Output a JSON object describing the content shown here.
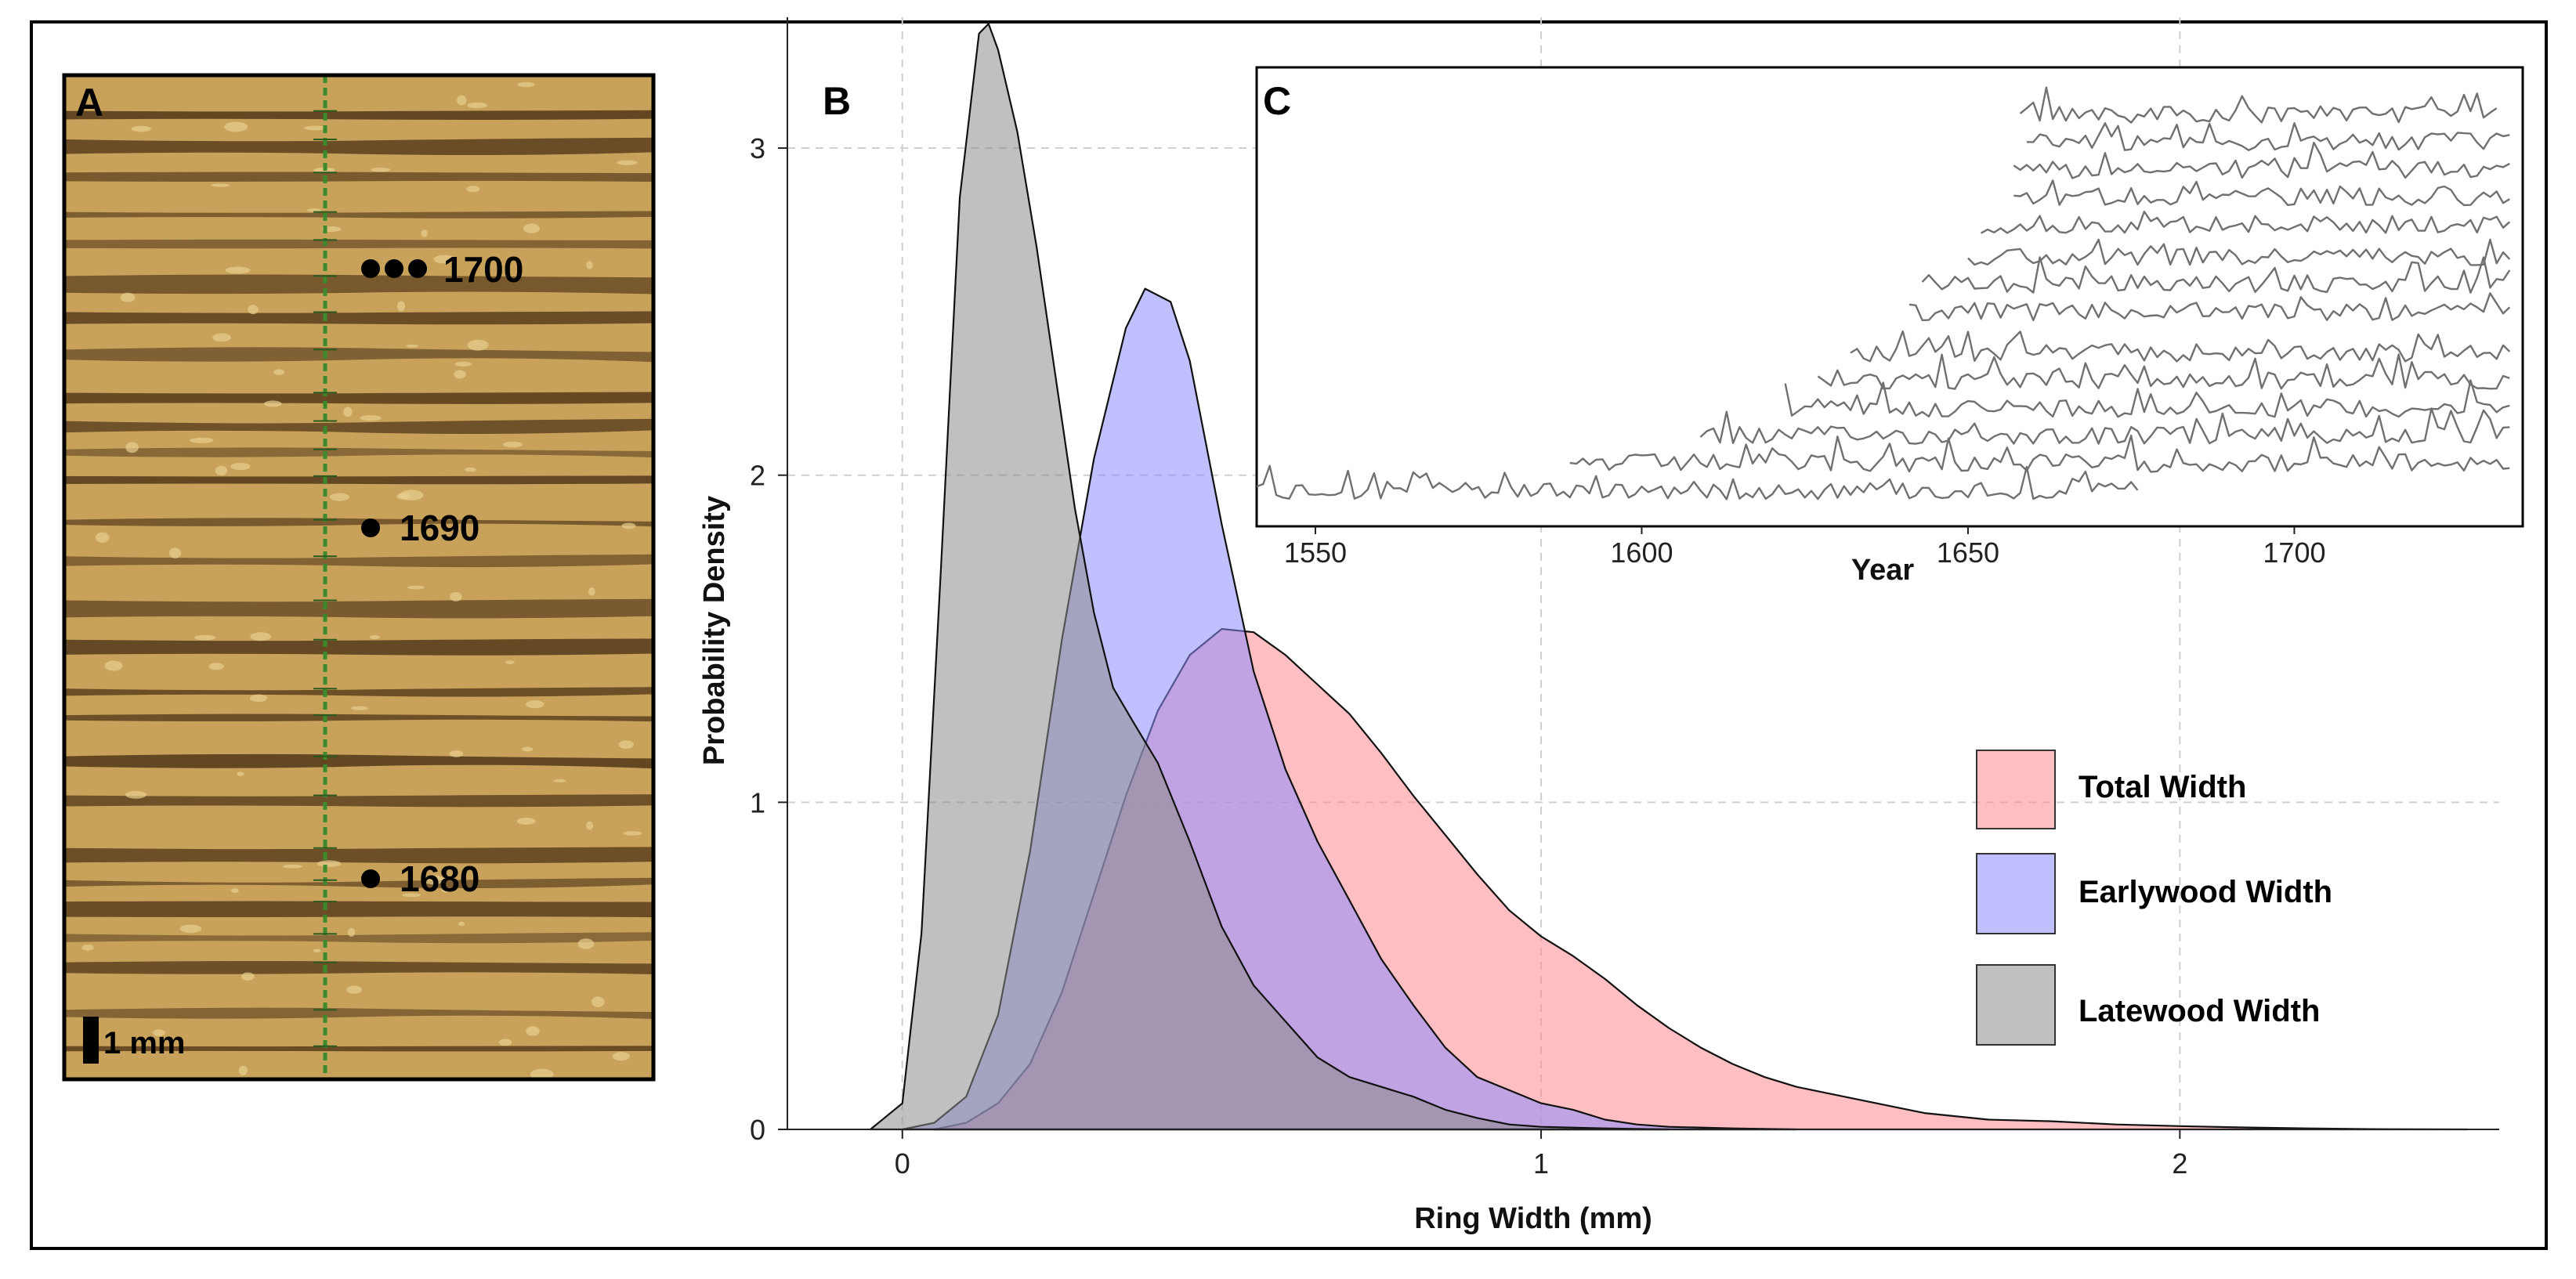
{
  "panel_a": {
    "letter": "A",
    "scale_label": "1 mm",
    "markers": [
      {
        "year_label": "1700",
        "dots": 3
      },
      {
        "year_label": "1690",
        "dots": 1
      },
      {
        "year_label": "1680",
        "dots": 1
      }
    ],
    "colors": {
      "wood_light": "#c8a25a",
      "wood_dark": "#5e4220",
      "measure_line": "#3c8a2c"
    }
  },
  "chart_data": [
    {
      "panel": "B",
      "type": "area",
      "title": "",
      "xlabel": "Ring Width (mm)",
      "ylabel": "Probability Density",
      "xlim": [
        -0.18,
        2.5
      ],
      "ylim": [
        0,
        3.4
      ],
      "xticks": [
        0,
        1,
        2
      ],
      "yticks": [
        0,
        1,
        2,
        3
      ],
      "grid": true,
      "legend_position": "right",
      "series": [
        {
          "name": "Total Width",
          "color": "#ff8a8f",
          "opacity": 0.55,
          "x": [
            0.05,
            0.1,
            0.15,
            0.2,
            0.25,
            0.3,
            0.35,
            0.4,
            0.45,
            0.5,
            0.55,
            0.6,
            0.65,
            0.7,
            0.75,
            0.8,
            0.85,
            0.9,
            0.95,
            1.0,
            1.05,
            1.1,
            1.15,
            1.2,
            1.25,
            1.3,
            1.35,
            1.4,
            1.45,
            1.5,
            1.55,
            1.6,
            1.7,
            1.8,
            1.9,
            2.0,
            2.1,
            2.2,
            2.3,
            2.45
          ],
          "y": [
            0,
            0.02,
            0.08,
            0.2,
            0.42,
            0.72,
            1.02,
            1.28,
            1.45,
            1.53,
            1.52,
            1.45,
            1.36,
            1.27,
            1.15,
            1.02,
            0.9,
            0.78,
            0.67,
            0.59,
            0.53,
            0.46,
            0.38,
            0.31,
            0.25,
            0.2,
            0.16,
            0.13,
            0.11,
            0.09,
            0.07,
            0.05,
            0.03,
            0.025,
            0.015,
            0.01,
            0.006,
            0.003,
            0.001,
            0
          ]
        },
        {
          "name": "Earlywood Width",
          "color": "#8c8cff",
          "opacity": 0.55,
          "x": [
            0,
            0.05,
            0.1,
            0.15,
            0.2,
            0.25,
            0.3,
            0.35,
            0.38,
            0.42,
            0.45,
            0.5,
            0.55,
            0.6,
            0.65,
            0.7,
            0.75,
            0.8,
            0.85,
            0.9,
            0.95,
            1.0,
            1.05,
            1.1,
            1.15,
            1.2,
            1.3,
            1.4
          ],
          "y": [
            0,
            0.02,
            0.1,
            0.35,
            0.85,
            1.5,
            2.05,
            2.45,
            2.57,
            2.53,
            2.35,
            1.85,
            1.4,
            1.1,
            0.88,
            0.7,
            0.52,
            0.38,
            0.25,
            0.16,
            0.12,
            0.08,
            0.06,
            0.03,
            0.015,
            0.008,
            0.003,
            0
          ]
        },
        {
          "name": "Latewood Width",
          "color": "#8c8c8c",
          "opacity": 0.55,
          "x": [
            -0.05,
            0,
            0.03,
            0.06,
            0.09,
            0.12,
            0.135,
            0.15,
            0.18,
            0.21,
            0.24,
            0.27,
            0.3,
            0.33,
            0.36,
            0.4,
            0.45,
            0.5,
            0.55,
            0.6,
            0.65,
            0.7,
            0.75,
            0.8,
            0.85,
            0.9,
            0.95,
            1.0,
            1.1,
            1.2
          ],
          "y": [
            0,
            0.08,
            0.6,
            1.7,
            2.85,
            3.35,
            3.38,
            3.3,
            3.05,
            2.7,
            2.3,
            1.9,
            1.58,
            1.35,
            1.25,
            1.12,
            0.88,
            0.62,
            0.44,
            0.33,
            0.22,
            0.16,
            0.13,
            0.1,
            0.06,
            0.035,
            0.015,
            0.008,
            0.003,
            0
          ]
        }
      ]
    },
    {
      "panel": "C",
      "type": "line",
      "title": "",
      "xlabel": "Year",
      "ylabel": "",
      "xlim": [
        1541,
        1735
      ],
      "xticks": [
        1550,
        1600,
        1650,
        1700
      ],
      "grid": false,
      "line_color": "#707070",
      "series_count": 14,
      "series": [
        {
          "start": 1541,
          "end": 1676,
          "baseline": 0.92
        },
        {
          "start": 1589,
          "end": 1733,
          "baseline": 0.86
        },
        {
          "start": 1609,
          "end": 1733,
          "baseline": 0.8
        },
        {
          "start": 1622,
          "end": 1733,
          "baseline": 0.74
        },
        {
          "start": 1627,
          "end": 1733,
          "baseline": 0.68
        },
        {
          "start": 1632,
          "end": 1733,
          "baseline": 0.62
        },
        {
          "start": 1641,
          "end": 1733,
          "baseline": 0.53
        },
        {
          "start": 1643,
          "end": 1733,
          "baseline": 0.47
        },
        {
          "start": 1650,
          "end": 1733,
          "baseline": 0.41
        },
        {
          "start": 1652,
          "end": 1733,
          "baseline": 0.34
        },
        {
          "start": 1657,
          "end": 1733,
          "baseline": 0.28
        },
        {
          "start": 1657,
          "end": 1733,
          "baseline": 0.22
        },
        {
          "start": 1659,
          "end": 1733,
          "baseline": 0.16
        },
        {
          "start": 1658,
          "end": 1731,
          "baseline": 0.1
        }
      ]
    }
  ],
  "panel_b_letter": "B",
  "panel_c_letter": "C"
}
